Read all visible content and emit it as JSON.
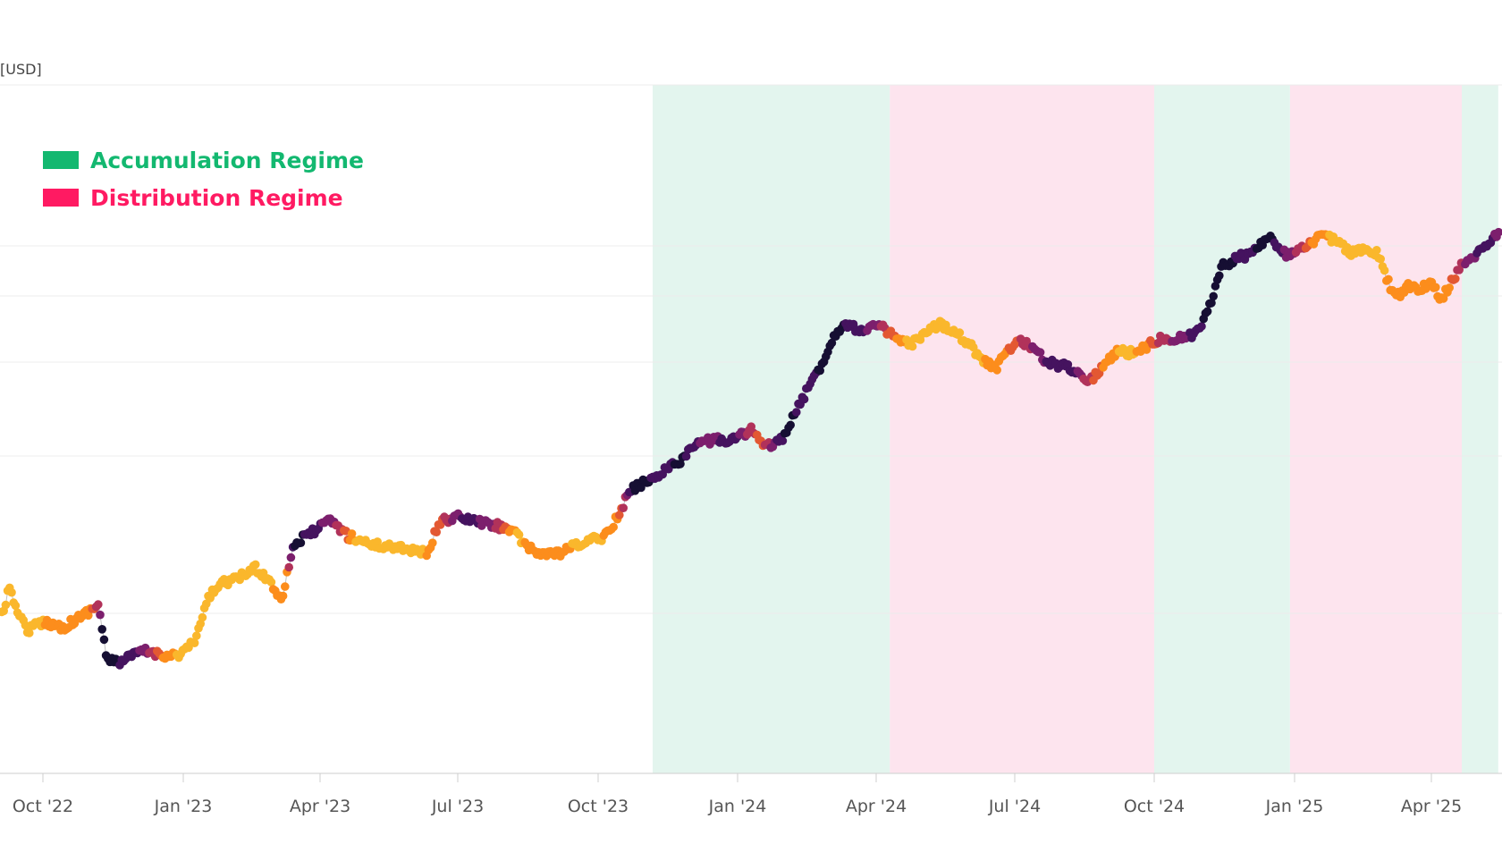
{
  "chart_data": {
    "type": "scatter",
    "unit_label": "[USD]",
    "x_ticks": [
      "Oct '22",
      "Jan '23",
      "Apr '23",
      "Jul '23",
      "Oct '23",
      "Jan '24",
      "Apr '24",
      "Jul '24",
      "Oct '24",
      "Jan '25",
      "Apr '25"
    ],
    "regimes": [
      {
        "type": "accumulation",
        "start": "2023-11-06",
        "end": "2024-04-10"
      },
      {
        "type": "distribution",
        "start": "2024-04-10",
        "end": "2024-10-01"
      },
      {
        "type": "accumulation",
        "start": "2024-10-01",
        "end": "2024-12-29"
      },
      {
        "type": "distribution",
        "start": "2024-12-29",
        "end": "2025-04-21"
      },
      {
        "type": "accumulation",
        "start": "2025-04-21",
        "end": "2025-05-15"
      }
    ],
    "legend": [
      {
        "label": "Accumulation Regime",
        "color": "#13b870"
      },
      {
        "label": "Distribution Regime",
        "color": "#ff1a62"
      }
    ],
    "band_colors": {
      "accumulation": "#e3f5ee",
      "distribution": "#fde4ee"
    },
    "color_scale": [
      "#160f33",
      "#45135f",
      "#7c1f6d",
      "#b1325a",
      "#e35832",
      "#fc8d1c",
      "#fab72c",
      "#f6d35e"
    ],
    "grid": true
  }
}
